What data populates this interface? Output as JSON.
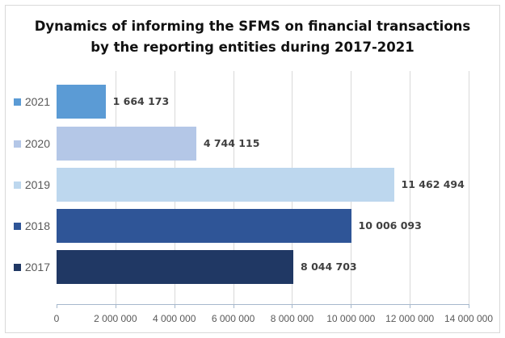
{
  "chart_data": {
    "type": "bar",
    "orientation": "horizontal",
    "title": "Dynamics of informing the SFMS on financial transactions by the reporting entities during 2017-2021",
    "title_lines": [
      "Dynamics of informing the SFMS on financial transactions",
      "by the reporting entities during 2017-2021"
    ],
    "categories": [
      "2021",
      "2020",
      "2019",
      "2018",
      "2017"
    ],
    "values": [
      1664173,
      4744115,
      11462494,
      10006093,
      8044703
    ],
    "value_labels": [
      "1 664 173",
      "4 744 115",
      "11 462 494",
      "10 006 093",
      "8 044 703"
    ],
    "colors": [
      "#5b9bd5",
      "#b4c7e7",
      "#bdd7ee",
      "#2f5597",
      "#203864"
    ],
    "xlabel": "",
    "ylabel": "",
    "xlim": [
      0,
      14000000
    ],
    "x_ticks": [
      0,
      2000000,
      4000000,
      6000000,
      8000000,
      10000000,
      12000000,
      14000000
    ],
    "x_tick_labels": [
      "0",
      "2 000 000",
      "4 000 000",
      "6 000 000",
      "8 000 000",
      "10 000 000",
      "12 000 000",
      "14 000 000"
    ],
    "grid": true,
    "legend_position": "left (category labels with swatches)"
  }
}
